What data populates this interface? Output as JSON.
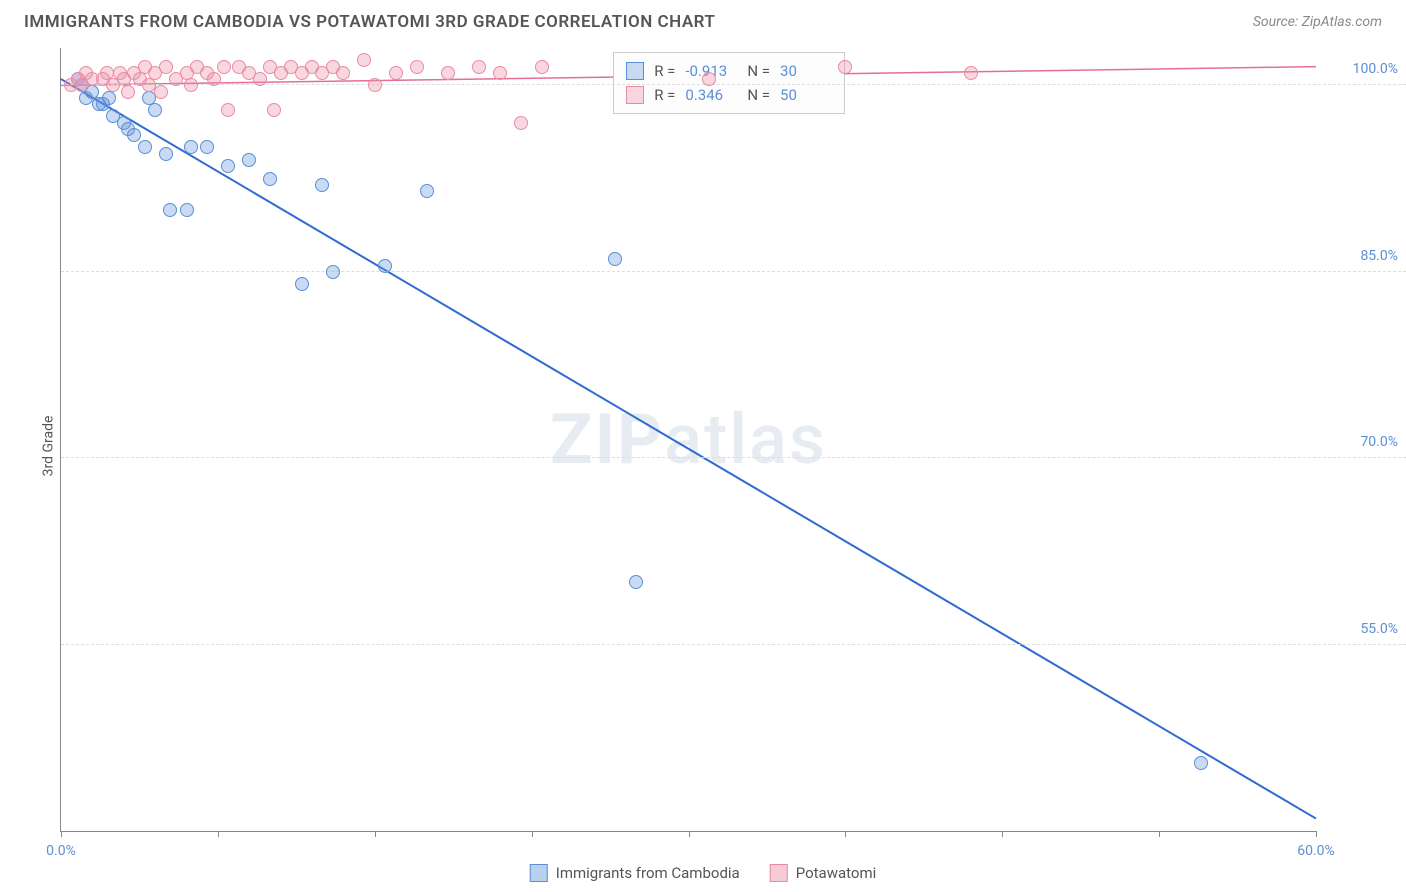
{
  "title": "IMMIGRANTS FROM CAMBODIA VS POTAWATOMI 3RD GRADE CORRELATION CHART",
  "source_label": "Source: ",
  "source_value": "ZipAtlas.com",
  "ylabel": "3rd Grade",
  "watermark_a": "ZIP",
  "watermark_b": "atlas",
  "chart": {
    "type": "scatter",
    "xlim": [
      0,
      60
    ],
    "ylim": [
      40,
      103
    ],
    "xticks": [
      0,
      7.5,
      15,
      22.5,
      30,
      37.5,
      45,
      52.5,
      60
    ],
    "xtick_labels": {
      "0": "0.0%",
      "60": "60.0%"
    },
    "yticks": [
      55,
      70,
      85,
      100
    ],
    "ytick_labels": {
      "55": "55.0%",
      "70": "70.0%",
      "85": "85.0%",
      "100": "100.0%"
    },
    "grid_color": "#dddddd",
    "background": "#ffffff",
    "series": [
      {
        "name": "Immigrants from Cambodia",
        "color_fill": "rgba(100,150,220,0.35)",
        "color_stroke": "#5b8fd6",
        "marker_size": 14,
        "R": "-0.913",
        "N": "30",
        "trend": {
          "x1": 0,
          "y1": 100.5,
          "x2": 60,
          "y2": 41,
          "color": "#2f6bd0",
          "width": 2
        },
        "points": [
          [
            0.8,
            100.5
          ],
          [
            1.0,
            100
          ],
          [
            1.2,
            99
          ],
          [
            1.5,
            99.5
          ],
          [
            1.8,
            98.5
          ],
          [
            2.0,
            98.5
          ],
          [
            2.3,
            99
          ],
          [
            2.5,
            97.5
          ],
          [
            3.0,
            97
          ],
          [
            3.2,
            96.5
          ],
          [
            3.5,
            96
          ],
          [
            4.0,
            95
          ],
          [
            4.2,
            99
          ],
          [
            4.5,
            98
          ],
          [
            5.0,
            94.5
          ],
          [
            5.2,
            90
          ],
          [
            6.0,
            90
          ],
          [
            6.2,
            95
          ],
          [
            7.0,
            95
          ],
          [
            8.0,
            93.5
          ],
          [
            9.0,
            94
          ],
          [
            10.0,
            92.5
          ],
          [
            11.5,
            84
          ],
          [
            12.5,
            92
          ],
          [
            13.0,
            85
          ],
          [
            15.5,
            85.5
          ],
          [
            17.5,
            91.5
          ],
          [
            26.5,
            86
          ],
          [
            27.5,
            60
          ],
          [
            54.5,
            45.5
          ]
        ]
      },
      {
        "name": "Potawatomi",
        "color_fill": "rgba(235,140,165,0.35)",
        "color_stroke": "#e88ca5",
        "marker_size": 14,
        "R": "0.346",
        "N": "50",
        "trend": {
          "x1": 0,
          "y1": 100,
          "x2": 60,
          "y2": 101.5,
          "color": "#e56f93",
          "width": 1.5
        },
        "points": [
          [
            0.5,
            100
          ],
          [
            0.8,
            100.5
          ],
          [
            1.0,
            100
          ],
          [
            1.2,
            101
          ],
          [
            1.5,
            100.5
          ],
          [
            2.0,
            100.5
          ],
          [
            2.2,
            101
          ],
          [
            2.5,
            100
          ],
          [
            2.8,
            101
          ],
          [
            3.0,
            100.5
          ],
          [
            3.2,
            99.5
          ],
          [
            3.5,
            101
          ],
          [
            3.8,
            100.5
          ],
          [
            4.0,
            101.5
          ],
          [
            4.2,
            100
          ],
          [
            4.5,
            101
          ],
          [
            4.8,
            99.5
          ],
          [
            5.0,
            101.5
          ],
          [
            5.5,
            100.5
          ],
          [
            6.0,
            101
          ],
          [
            6.2,
            100
          ],
          [
            6.5,
            101.5
          ],
          [
            7.0,
            101
          ],
          [
            7.3,
            100.5
          ],
          [
            7.8,
            101.5
          ],
          [
            8.0,
            98
          ],
          [
            8.5,
            101.5
          ],
          [
            9.0,
            101
          ],
          [
            9.5,
            100.5
          ],
          [
            10.0,
            101.5
          ],
          [
            10.2,
            98
          ],
          [
            10.5,
            101
          ],
          [
            11.0,
            101.5
          ],
          [
            11.5,
            101
          ],
          [
            12.0,
            101.5
          ],
          [
            12.5,
            101
          ],
          [
            13.0,
            101.5
          ],
          [
            13.5,
            101
          ],
          [
            14.5,
            102
          ],
          [
            15.0,
            100
          ],
          [
            16.0,
            101
          ],
          [
            17.0,
            101.5
          ],
          [
            18.5,
            101
          ],
          [
            20.0,
            101.5
          ],
          [
            21.0,
            101
          ],
          [
            22.0,
            97
          ],
          [
            23.0,
            101.5
          ],
          [
            31.0,
            100.5
          ],
          [
            37.5,
            101.5
          ],
          [
            43.5,
            101
          ]
        ]
      }
    ]
  },
  "stats_labels": {
    "R": "R  =",
    "N": "N  ="
  },
  "legend_series": [
    {
      "label": "Immigrants from Cambodia",
      "fill": "rgba(100,150,220,0.45)",
      "stroke": "#5b8fd6"
    },
    {
      "label": "Potawatomi",
      "fill": "rgba(235,140,165,0.45)",
      "stroke": "#e88ca5"
    }
  ]
}
